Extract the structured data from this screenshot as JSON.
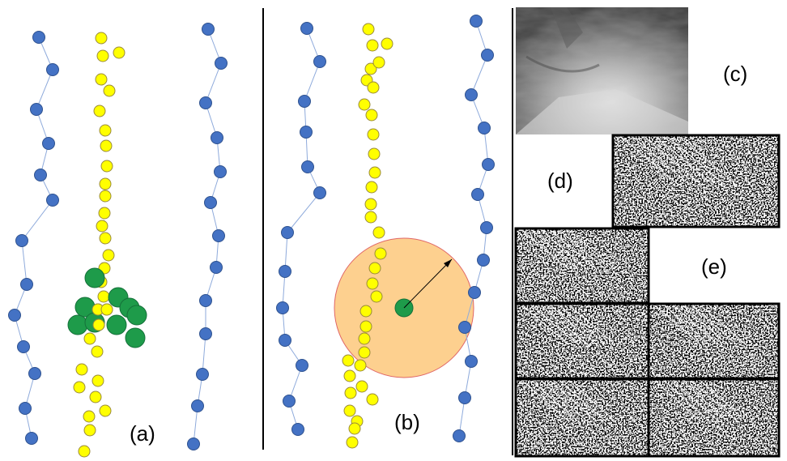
{
  "labels": {
    "a": "(a)",
    "b": "(b)",
    "c": "(c)",
    "d": "(d)",
    "e": "(e)"
  },
  "colors": {
    "blue_node": "#4472c4",
    "blue_line": "#8eaadb",
    "yellow_node": "#ffff00",
    "yellow_stroke": "#9a8a3a",
    "green_node": "#1e9b4a",
    "radius_fill": "#fdd08f",
    "radius_stroke": "#e06666",
    "divider": "#000000"
  },
  "panels": {
    "a": {
      "point_groups": [
        "left-blue-trajectory",
        "center-yellow-trajectory",
        "right-blue-trajectory",
        "green-cluster"
      ]
    },
    "b": {
      "point_groups": [
        "left-blue-trajectory",
        "center-yellow-trajectory",
        "right-blue-trajectory",
        "query-node",
        "search-radius"
      ]
    },
    "c": {
      "content": "camera-frame-image"
    },
    "d": {
      "content": "single-feature-map-image"
    },
    "e": {
      "content": "five-feature-map-images"
    }
  }
}
